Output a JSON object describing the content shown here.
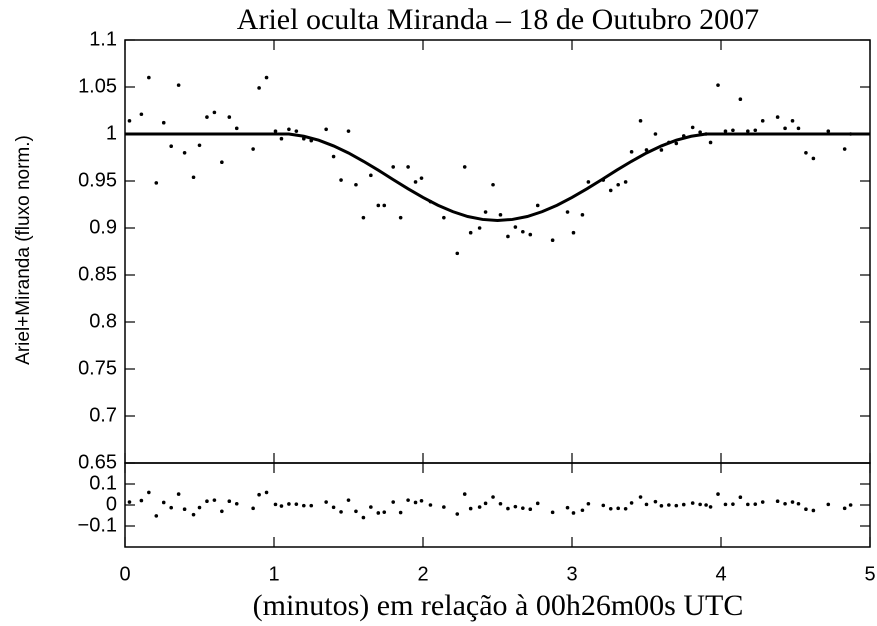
{
  "chart_data": [
    {
      "type": "scatter",
      "title": "Ariel oculta Miranda – 18 de Outubro 2007",
      "ylabel": "Ariel+Miranda (fluxo norm.)",
      "xlim": [
        0,
        5
      ],
      "xticks": [
        0,
        1,
        2,
        3,
        4,
        5
      ],
      "ylim": [
        0.65,
        1.1
      ],
      "yticks": [
        0.65,
        0.7,
        0.75,
        0.8,
        0.85,
        0.9,
        0.95,
        1,
        1.05,
        1.1
      ],
      "series": [
        {
          "type": "scatter",
          "color": "#000000",
          "x": [
            0.03,
            0.11,
            0.16,
            0.21,
            0.26,
            0.31,
            0.36,
            0.4,
            0.46,
            0.5,
            0.55,
            0.6,
            0.65,
            0.7,
            0.75,
            0.86,
            0.9,
            0.95,
            1.01,
            1.05,
            1.1,
            1.15,
            1.2,
            1.25,
            1.35,
            1.4,
            1.45,
            1.5,
            1.55,
            1.6,
            1.65,
            1.7,
            1.74,
            1.8,
            1.85,
            1.9,
            1.95,
            1.99,
            2.05,
            2.14,
            2.23,
            2.28,
            2.32,
            2.38,
            2.42,
            2.47,
            2.52,
            2.57,
            2.62,
            2.67,
            2.72,
            2.77,
            2.87,
            2.97,
            3.01,
            3.07,
            3.11,
            3.21,
            3.26,
            3.31,
            3.36,
            3.4,
            3.46,
            3.5,
            3.56,
            3.6,
            3.65,
            3.7,
            3.75,
            3.81,
            3.86,
            3.9,
            3.93,
            3.98,
            4.03,
            4.08,
            4.13,
            4.18,
            4.23,
            4.28,
            4.38,
            4.43,
            4.48,
            4.52,
            4.57,
            4.62,
            4.72,
            4.83,
            4.87
          ],
          "values": [
            1.014,
            1.021,
            1.06,
            0.948,
            1.012,
            0.987,
            1.052,
            0.98,
            0.954,
            0.988,
            1.018,
            1.023,
            0.97,
            1.018,
            1.006,
            0.984,
            1.049,
            1.06,
            1.003,
            0.995,
            1.005,
            1.003,
            0.995,
            0.993,
            1.005,
            0.976,
            0.951,
            1.003,
            0.946,
            0.911,
            0.956,
            0.924,
            0.924,
            0.965,
            0.911,
            0.965,
            0.949,
            0.953,
            0.928,
            0.911,
            0.873,
            0.965,
            0.895,
            0.9,
            0.917,
            0.946,
            0.914,
            0.891,
            0.901,
            0.896,
            0.893,
            0.924,
            0.887,
            0.917,
            0.895,
            0.914,
            0.949,
            0.951,
            0.94,
            0.946,
            0.949,
            0.981,
            1.014,
            0.983,
            1.0,
            0.983,
            0.991,
            0.99,
            0.998,
            1.007,
            1.002,
            1.0,
            0.991,
            1.052,
            1.003,
            1.004,
            1.037,
            1.003,
            1.004,
            1.014,
            1.018,
            1.006,
            1.014,
            1.006,
            0.98,
            0.974,
            1.003,
            0.984,
            1.0
          ]
        },
        {
          "type": "line",
          "color": "#000000",
          "x": [
            0,
            1.0,
            1.1,
            1.2,
            1.3,
            1.4,
            1.5,
            1.6,
            1.7,
            1.8,
            1.9,
            2.0,
            2.1,
            2.2,
            2.3,
            2.4,
            2.5,
            2.6,
            2.7,
            2.8,
            2.9,
            3.0,
            3.1,
            3.2,
            3.3,
            3.4,
            3.5,
            3.6,
            3.7,
            3.8,
            3.9,
            4.0,
            5
          ],
          "values": [
            1,
            1,
            1.0,
            0.9976,
            0.9934,
            0.9873,
            0.9798,
            0.971,
            0.9615,
            0.9515,
            0.9417,
            0.9325,
            0.9242,
            0.9174,
            0.9122,
            0.9091,
            0.908,
            0.9091,
            0.9122,
            0.9174,
            0.9242,
            0.9325,
            0.9417,
            0.9515,
            0.9615,
            0.971,
            0.9798,
            0.9873,
            0.9934,
            0.9976,
            1.0,
            1,
            1
          ]
        }
      ]
    },
    {
      "type": "scatter",
      "xlabel": "(minutos) em relação à 00h26m00s UTC",
      "xlim": [
        0,
        5
      ],
      "xticks": [
        0,
        1,
        2,
        3,
        4,
        5
      ],
      "ylim": [
        -0.2,
        0.2
      ],
      "yticks": [
        {
          "value": -0.1,
          "label": "−0.1"
        },
        0,
        0.1
      ],
      "series": [
        {
          "type": "scatter",
          "color": "#000000",
          "x": [
            0.03,
            0.11,
            0.16,
            0.21,
            0.26,
            0.31,
            0.36,
            0.4,
            0.46,
            0.5,
            0.55,
            0.6,
            0.65,
            0.7,
            0.75,
            0.86,
            0.9,
            0.95,
            1.01,
            1.05,
            1.1,
            1.15,
            1.2,
            1.25,
            1.35,
            1.4,
            1.45,
            1.5,
            1.55,
            1.6,
            1.65,
            1.7,
            1.74,
            1.8,
            1.85,
            1.9,
            1.95,
            1.99,
            2.05,
            2.14,
            2.23,
            2.28,
            2.32,
            2.38,
            2.42,
            2.47,
            2.52,
            2.57,
            2.62,
            2.67,
            2.72,
            2.77,
            2.87,
            2.97,
            3.01,
            3.07,
            3.11,
            3.21,
            3.26,
            3.31,
            3.36,
            3.4,
            3.46,
            3.5,
            3.56,
            3.6,
            3.65,
            3.7,
            3.75,
            3.81,
            3.86,
            3.9,
            3.93,
            3.98,
            4.03,
            4.08,
            4.13,
            4.18,
            4.23,
            4.28,
            4.38,
            4.43,
            4.48,
            4.52,
            4.57,
            4.62,
            4.72,
            4.83,
            4.87
          ],
          "values": [
            0.014,
            0.021,
            0.06,
            -0.052,
            0.012,
            -0.013,
            0.052,
            -0.02,
            -0.046,
            -0.012,
            0.018,
            0.023,
            -0.03,
            0.018,
            0.006,
            -0.016,
            0.049,
            0.06,
            0.003,
            -0.005,
            0.005,
            0.004,
            -0.003,
            -0.003,
            0.014,
            -0.011,
            -0.033,
            0.023,
            -0.03,
            -0.06,
            -0.01,
            -0.038,
            -0.034,
            0.014,
            -0.036,
            0.023,
            0.012,
            0.02,
            0,
            -0.01,
            -0.043,
            0.052,
            -0.017,
            -0.01,
            0.008,
            0.038,
            0.006,
            -0.017,
            -0.008,
            -0.015,
            -0.02,
            0.008,
            -0.035,
            -0.013,
            -0.038,
            -0.025,
            0.006,
            -0.002,
            -0.018,
            -0.016,
            -0.018,
            0.01,
            0.038,
            0.003,
            0.016,
            -0.004,
            0,
            -0.003,
            0.002,
            0.009,
            0.003,
            0,
            -0.009,
            0.052,
            0.003,
            0.004,
            0.037,
            0.003,
            0.004,
            0.014,
            0.018,
            0.006,
            0.014,
            0.006,
            -0.02,
            -0.026,
            0.003,
            -0.016,
            0
          ]
        }
      ]
    }
  ]
}
